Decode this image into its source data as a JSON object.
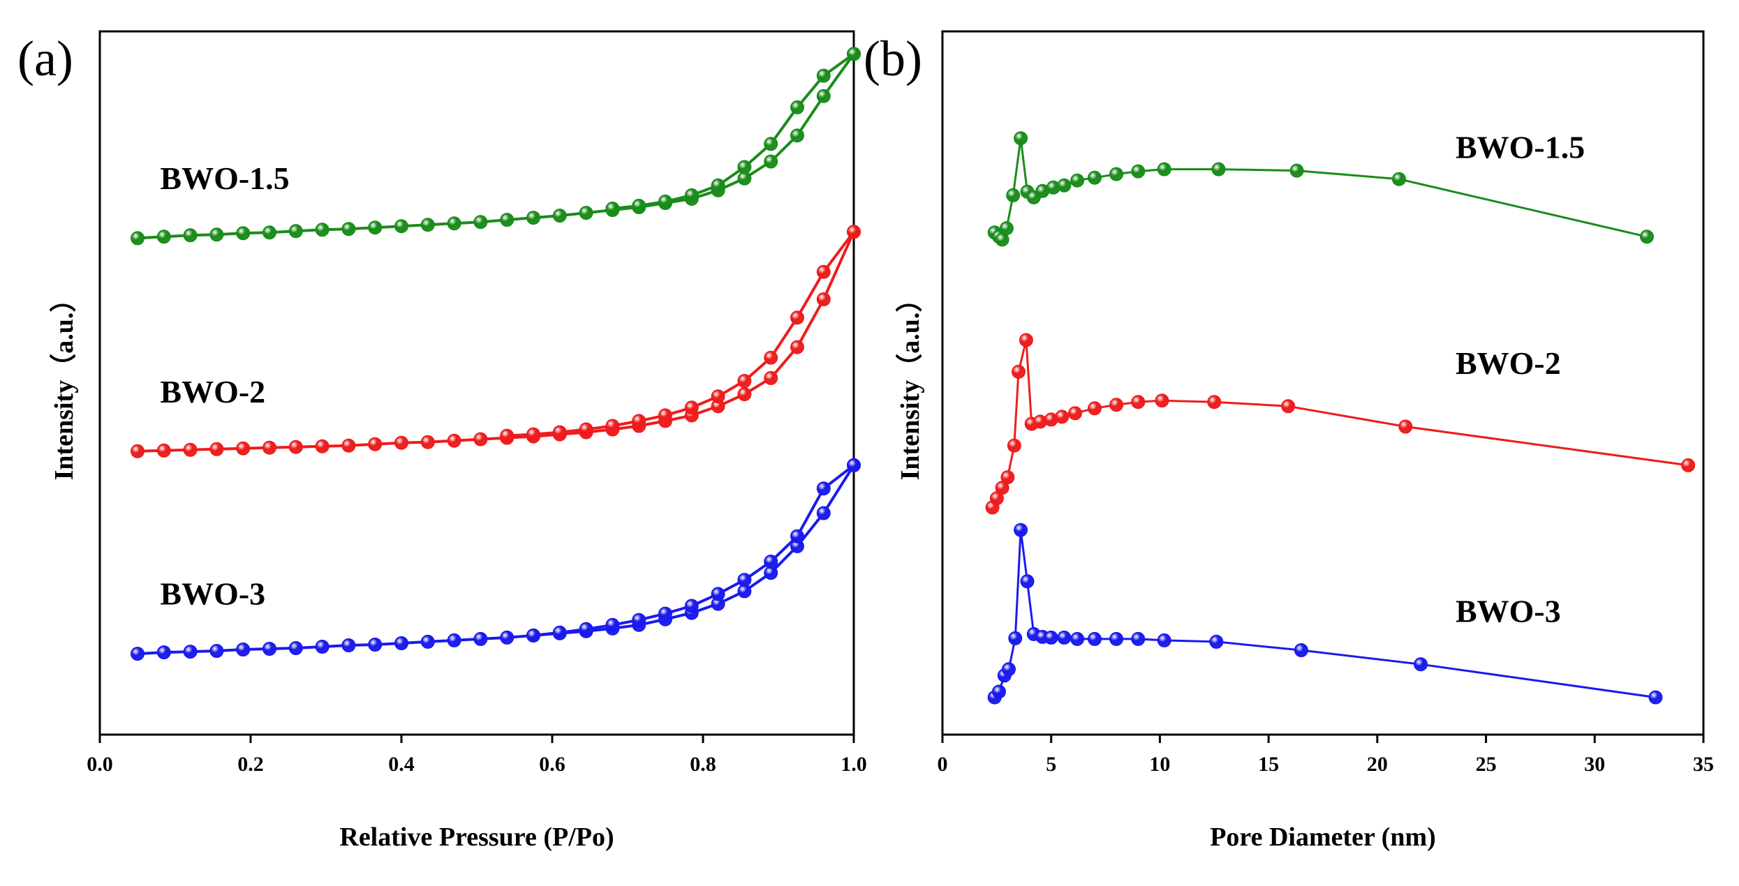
{
  "chart_data": [
    {
      "panel_label": "(a)",
      "type": "line",
      "xlabel": "Relative Pressure (P/Po)",
      "ylabel": "Intensity（a.u.）",
      "xlim": [
        0.0,
        1.0
      ],
      "ylim": [
        0,
        100
      ],
      "xticks": [
        "0.0",
        "0.2",
        "0.4",
        "0.6",
        "0.8",
        "1.0"
      ],
      "yticks": [],
      "series": [
        {
          "name": "BWO-1.5",
          "color": "#1a8c1a",
          "marker": "sphere",
          "x": [
            0.05,
            0.085,
            0.12,
            0.155,
            0.19,
            0.225,
            0.26,
            0.295,
            0.33,
            0.365,
            0.4,
            0.435,
            0.47,
            0.505,
            0.54,
            0.575,
            0.61,
            0.645,
            0.68,
            0.715,
            0.75,
            0.785,
            0.82,
            0.855,
            0.89,
            0.925,
            0.96,
            1.0
          ],
          "values": [
            70.6,
            70.8,
            71.0,
            71.1,
            71.3,
            71.4,
            71.6,
            71.8,
            71.9,
            72.1,
            72.3,
            72.5,
            72.7,
            72.9,
            73.2,
            73.5,
            73.8,
            74.2,
            74.6,
            75.0,
            75.6,
            76.2,
            77.4,
            79.1,
            81.5,
            85.2,
            90.8,
            96.8
          ]
        },
        {
          "name": "BWO-1.5 desorption",
          "color": "#1a8c1a",
          "marker": "sphere",
          "x": [
            1.0,
            0.96,
            0.925,
            0.89,
            0.855,
            0.82,
            0.785,
            0.75,
            0.715,
            0.68
          ],
          "values": [
            96.8,
            93.7,
            89.2,
            84.0,
            80.7,
            78.1,
            76.7,
            75.8,
            75.2,
            74.8
          ]
        },
        {
          "name": "BWO-2",
          "color": "#ee1c1c",
          "marker": "sphere",
          "x": [
            0.05,
            0.085,
            0.12,
            0.155,
            0.19,
            0.225,
            0.26,
            0.295,
            0.33,
            0.365,
            0.4,
            0.435,
            0.47,
            0.505,
            0.54,
            0.575,
            0.61,
            0.645,
            0.68,
            0.715,
            0.75,
            0.785,
            0.82,
            0.855,
            0.89,
            0.925,
            0.96,
            1.0
          ],
          "values": [
            40.3,
            40.4,
            40.5,
            40.6,
            40.7,
            40.8,
            40.9,
            41.0,
            41.1,
            41.3,
            41.5,
            41.6,
            41.8,
            42.0,
            42.2,
            42.4,
            42.7,
            43.0,
            43.4,
            43.9,
            44.6,
            45.4,
            46.7,
            48.4,
            50.7,
            55.1,
            61.9,
            71.5
          ]
        },
        {
          "name": "BWO-2 desorption",
          "color": "#ee1c1c",
          "marker": "sphere",
          "x": [
            1.0,
            0.96,
            0.925,
            0.89,
            0.855,
            0.82,
            0.785,
            0.75,
            0.715,
            0.68,
            0.645,
            0.61,
            0.575,
            0.54
          ],
          "values": [
            71.5,
            65.8,
            59.3,
            53.6,
            50.3,
            48.1,
            46.5,
            45.4,
            44.6,
            43.9,
            43.4,
            43.0,
            42.7,
            42.5
          ]
        },
        {
          "name": "BWO-3",
          "color": "#1a1aee",
          "marker": "sphere",
          "x": [
            0.05,
            0.085,
            0.12,
            0.155,
            0.19,
            0.225,
            0.26,
            0.295,
            0.33,
            0.365,
            0.4,
            0.435,
            0.47,
            0.505,
            0.54,
            0.575,
            0.61,
            0.645,
            0.68,
            0.715,
            0.75,
            0.785,
            0.82,
            0.855,
            0.89,
            0.925,
            0.96,
            1.0
          ],
          "values": [
            11.5,
            11.7,
            11.8,
            11.9,
            12.1,
            12.2,
            12.3,
            12.5,
            12.7,
            12.8,
            13.0,
            13.2,
            13.4,
            13.6,
            13.8,
            14.1,
            14.4,
            14.7,
            15.1,
            15.6,
            16.4,
            17.3,
            18.6,
            20.4,
            23.0,
            26.8,
            31.5,
            38.3
          ]
        },
        {
          "name": "BWO-3 desorption",
          "color": "#1a1aee",
          "marker": "sphere",
          "x": [
            1.0,
            0.96,
            0.925,
            0.89,
            0.855,
            0.82,
            0.785,
            0.75,
            0.715,
            0.68,
            0.645,
            0.61,
            0.575
          ],
          "values": [
            38.3,
            35.0,
            28.2,
            24.6,
            22.0,
            20.0,
            18.3,
            17.2,
            16.3,
            15.6,
            15.0,
            14.5,
            14.1
          ]
        }
      ],
      "labels": [
        {
          "text": "BWO-1.5",
          "x": 0.08,
          "y": 77.6
        },
        {
          "text": "BWO-2",
          "x": 0.08,
          "y": 47.2
        },
        {
          "text": "BWO-3",
          "x": 0.08,
          "y": 18.5
        }
      ]
    },
    {
      "panel_label": "(b)",
      "type": "line",
      "xlabel": "Pore Diameter (nm)",
      "ylabel": "Intensity（a.u.）",
      "xlim": [
        0,
        35
      ],
      "ylim": [
        0,
        100
      ],
      "xticks": [
        "0",
        "5",
        "10",
        "15",
        "20",
        "25",
        "30",
        "35"
      ],
      "yticks": [],
      "series": [
        {
          "name": "BWO-1.5",
          "color": "#1a8c1a",
          "marker": "sphere",
          "x": [
            2.4,
            2.6,
            2.75,
            2.95,
            3.25,
            3.6,
            3.9,
            4.2,
            4.6,
            5.1,
            5.6,
            6.2,
            7.0,
            8.0,
            9.0,
            10.2,
            12.7,
            16.3,
            21.0,
            32.4
          ],
          "values": [
            71.4,
            70.8,
            70.4,
            72.0,
            76.7,
            84.8,
            77.2,
            76.4,
            77.3,
            77.8,
            78.1,
            78.8,
            79.2,
            79.7,
            80.1,
            80.4,
            80.4,
            80.2,
            79.0,
            70.8
          ]
        },
        {
          "name": "BWO-2",
          "color": "#ee1c1c",
          "marker": "sphere",
          "x": [
            2.3,
            2.5,
            2.75,
            3.0,
            3.3,
            3.5,
            3.85,
            4.1,
            4.5,
            5.0,
            5.5,
            6.1,
            7.0,
            8.0,
            9.0,
            10.1,
            12.5,
            15.9,
            21.3,
            34.3
          ],
          "values": [
            32.3,
            33.6,
            35.1,
            36.6,
            41.1,
            51.6,
            56.1,
            44.2,
            44.5,
            44.8,
            45.2,
            45.7,
            46.4,
            46.9,
            47.3,
            47.5,
            47.3,
            46.7,
            43.8,
            38.3
          ]
        },
        {
          "name": "BWO-3",
          "color": "#1a1aee",
          "marker": "sphere",
          "x": [
            2.4,
            2.6,
            2.85,
            3.05,
            3.35,
            3.6,
            3.9,
            4.2,
            4.6,
            5.0,
            5.6,
            6.2,
            7.0,
            8.0,
            9.0,
            10.2,
            12.6,
            16.5,
            22.0,
            32.8
          ],
          "values": [
            5.3,
            6.1,
            8.4,
            9.3,
            13.7,
            29.1,
            21.8,
            14.3,
            13.9,
            13.8,
            13.8,
            13.6,
            13.6,
            13.6,
            13.6,
            13.4,
            13.2,
            12.0,
            10.0,
            5.3
          ]
        }
      ],
      "labels": [
        {
          "text": "BWO-1.5",
          "x": 23.6,
          "y": 82.0
        },
        {
          "text": "BWO-2",
          "x": 23.6,
          "y": 51.3
        },
        {
          "text": "BWO-3",
          "x": 23.6,
          "y": 16.0
        }
      ]
    }
  ]
}
